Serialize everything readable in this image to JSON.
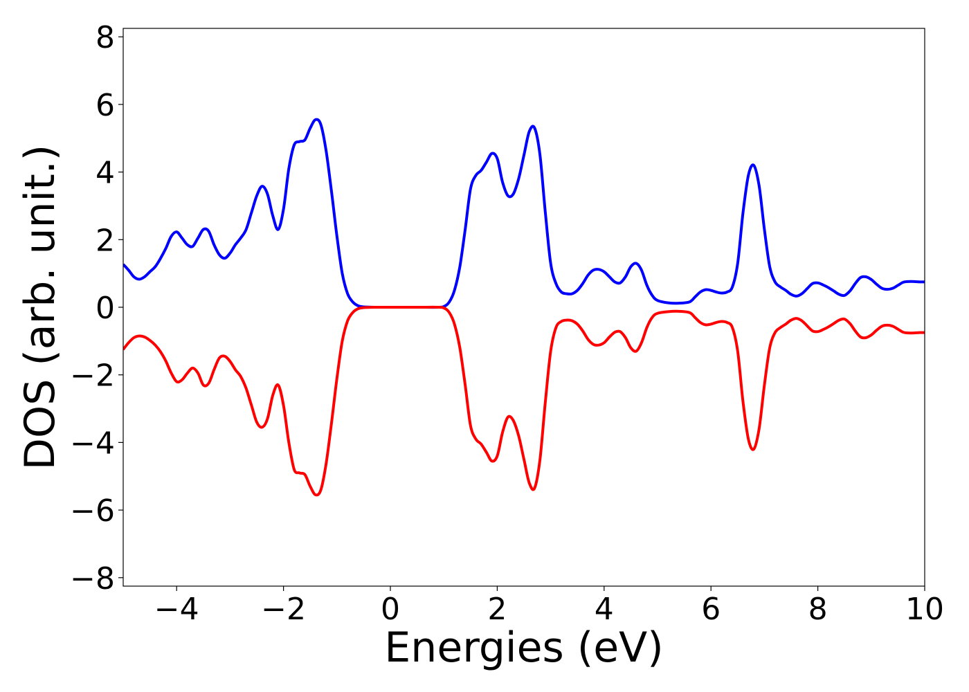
{
  "chart_data": {
    "type": "line",
    "title": "",
    "xlabel": "Energies (eV)",
    "ylabel": "DOS (arb. unit.)",
    "xlim": [
      -5,
      10
    ],
    "ylim": [
      -8.25,
      8.25
    ],
    "xticks": [
      -4,
      -2,
      0,
      2,
      4,
      6,
      8,
      10
    ],
    "xtick_labels": [
      "−4",
      "−2",
      "0",
      "2",
      "4",
      "6",
      "8",
      "10"
    ],
    "yticks": [
      8,
      6,
      4,
      2,
      0,
      -2,
      -4,
      -6,
      -8
    ],
    "ytick_labels": [
      "8",
      "6",
      "4",
      "2",
      "0",
      "−2",
      "−4",
      "−6",
      "−8"
    ],
    "grid": false,
    "legend": "none",
    "series": [
      {
        "color": "#0000ff",
        "points": [
          [
            -5.0,
            1.27
          ],
          [
            -4.9,
            1.1
          ],
          [
            -4.8,
            0.9
          ],
          [
            -4.7,
            0.83
          ],
          [
            -4.6,
            0.9
          ],
          [
            -4.5,
            1.05
          ],
          [
            -4.4,
            1.2
          ],
          [
            -4.3,
            1.45
          ],
          [
            -4.2,
            1.75
          ],
          [
            -4.1,
            2.1
          ],
          [
            -4.0,
            2.23
          ],
          [
            -3.9,
            2.05
          ],
          [
            -3.8,
            1.85
          ],
          [
            -3.7,
            1.8
          ],
          [
            -3.6,
            2.05
          ],
          [
            -3.5,
            2.3
          ],
          [
            -3.4,
            2.25
          ],
          [
            -3.3,
            1.85
          ],
          [
            -3.2,
            1.55
          ],
          [
            -3.1,
            1.45
          ],
          [
            -3.0,
            1.6
          ],
          [
            -2.9,
            1.85
          ],
          [
            -2.8,
            2.05
          ],
          [
            -2.7,
            2.3
          ],
          [
            -2.6,
            2.8
          ],
          [
            -2.5,
            3.3
          ],
          [
            -2.4,
            3.58
          ],
          [
            -2.3,
            3.35
          ],
          [
            -2.2,
            2.7
          ],
          [
            -2.1,
            2.3
          ],
          [
            -2.0,
            2.9
          ],
          [
            -1.9,
            4.1
          ],
          [
            -1.8,
            4.8
          ],
          [
            -1.7,
            4.9
          ],
          [
            -1.6,
            4.95
          ],
          [
            -1.5,
            5.3
          ],
          [
            -1.4,
            5.55
          ],
          [
            -1.3,
            5.4
          ],
          [
            -1.2,
            4.6
          ],
          [
            -1.1,
            3.4
          ],
          [
            -1.0,
            2.1
          ],
          [
            -0.9,
            1.0
          ],
          [
            -0.8,
            0.4
          ],
          [
            -0.7,
            0.15
          ],
          [
            -0.6,
            0.04
          ],
          [
            -0.5,
            0.01
          ],
          [
            -0.3,
            0.0
          ],
          [
            0.0,
            0.0
          ],
          [
            0.5,
            0.0
          ],
          [
            0.9,
            0.0
          ],
          [
            1.0,
            0.02
          ],
          [
            1.1,
            0.15
          ],
          [
            1.2,
            0.5
          ],
          [
            1.3,
            1.2
          ],
          [
            1.4,
            2.3
          ],
          [
            1.5,
            3.5
          ],
          [
            1.6,
            3.9
          ],
          [
            1.7,
            4.05
          ],
          [
            1.8,
            4.3
          ],
          [
            1.9,
            4.55
          ],
          [
            2.0,
            4.4
          ],
          [
            2.1,
            3.7
          ],
          [
            2.2,
            3.3
          ],
          [
            2.3,
            3.35
          ],
          [
            2.4,
            3.8
          ],
          [
            2.5,
            4.5
          ],
          [
            2.6,
            5.2
          ],
          [
            2.7,
            5.3
          ],
          [
            2.8,
            4.5
          ],
          [
            2.9,
            2.8
          ],
          [
            3.0,
            1.3
          ],
          [
            3.1,
            0.7
          ],
          [
            3.2,
            0.45
          ],
          [
            3.3,
            0.4
          ],
          [
            3.4,
            0.4
          ],
          [
            3.5,
            0.5
          ],
          [
            3.6,
            0.7
          ],
          [
            3.7,
            0.95
          ],
          [
            3.8,
            1.1
          ],
          [
            3.9,
            1.12
          ],
          [
            4.0,
            1.05
          ],
          [
            4.1,
            0.9
          ],
          [
            4.2,
            0.75
          ],
          [
            4.3,
            0.72
          ],
          [
            4.4,
            0.9
          ],
          [
            4.5,
            1.2
          ],
          [
            4.6,
            1.3
          ],
          [
            4.7,
            1.1
          ],
          [
            4.8,
            0.65
          ],
          [
            4.9,
            0.35
          ],
          [
            5.0,
            0.2
          ],
          [
            5.2,
            0.13
          ],
          [
            5.4,
            0.12
          ],
          [
            5.6,
            0.16
          ],
          [
            5.7,
            0.3
          ],
          [
            5.8,
            0.45
          ],
          [
            5.9,
            0.52
          ],
          [
            6.0,
            0.5
          ],
          [
            6.1,
            0.45
          ],
          [
            6.2,
            0.42
          ],
          [
            6.3,
            0.45
          ],
          [
            6.4,
            0.6
          ],
          [
            6.5,
            1.3
          ],
          [
            6.6,
            2.8
          ],
          [
            6.7,
            3.9
          ],
          [
            6.8,
            4.2
          ],
          [
            6.9,
            3.6
          ],
          [
            7.0,
            2.3
          ],
          [
            7.1,
            1.2
          ],
          [
            7.2,
            0.75
          ],
          [
            7.3,
            0.6
          ],
          [
            7.4,
            0.5
          ],
          [
            7.5,
            0.38
          ],
          [
            7.6,
            0.33
          ],
          [
            7.7,
            0.4
          ],
          [
            7.8,
            0.55
          ],
          [
            7.9,
            0.7
          ],
          [
            8.0,
            0.72
          ],
          [
            8.1,
            0.66
          ],
          [
            8.2,
            0.58
          ],
          [
            8.3,
            0.48
          ],
          [
            8.4,
            0.38
          ],
          [
            8.5,
            0.35
          ],
          [
            8.6,
            0.48
          ],
          [
            8.7,
            0.7
          ],
          [
            8.8,
            0.88
          ],
          [
            8.9,
            0.9
          ],
          [
            9.0,
            0.82
          ],
          [
            9.1,
            0.68
          ],
          [
            9.2,
            0.56
          ],
          [
            9.3,
            0.53
          ],
          [
            9.4,
            0.56
          ],
          [
            9.5,
            0.65
          ],
          [
            9.6,
            0.74
          ],
          [
            9.7,
            0.76
          ],
          [
            9.8,
            0.76
          ],
          [
            9.9,
            0.75
          ],
          [
            10.0,
            0.75
          ]
        ]
      },
      {
        "color": "#ff0000",
        "points": [
          [
            -5.0,
            -1.25
          ],
          [
            -4.9,
            -1.05
          ],
          [
            -4.8,
            -0.9
          ],
          [
            -4.7,
            -0.85
          ],
          [
            -4.6,
            -0.88
          ],
          [
            -4.5,
            -0.98
          ],
          [
            -4.4,
            -1.12
          ],
          [
            -4.3,
            -1.32
          ],
          [
            -4.2,
            -1.6
          ],
          [
            -4.1,
            -1.95
          ],
          [
            -4.0,
            -2.2
          ],
          [
            -3.9,
            -2.15
          ],
          [
            -3.8,
            -1.95
          ],
          [
            -3.7,
            -1.8
          ],
          [
            -3.6,
            -1.95
          ],
          [
            -3.5,
            -2.3
          ],
          [
            -3.4,
            -2.25
          ],
          [
            -3.3,
            -1.85
          ],
          [
            -3.2,
            -1.5
          ],
          [
            -3.1,
            -1.45
          ],
          [
            -3.0,
            -1.6
          ],
          [
            -2.9,
            -1.85
          ],
          [
            -2.8,
            -2.05
          ],
          [
            -2.7,
            -2.4
          ],
          [
            -2.6,
            -2.9
          ],
          [
            -2.5,
            -3.4
          ],
          [
            -2.4,
            -3.55
          ],
          [
            -2.3,
            -3.3
          ],
          [
            -2.2,
            -2.6
          ],
          [
            -2.1,
            -2.3
          ],
          [
            -2.0,
            -2.9
          ],
          [
            -1.9,
            -4.0
          ],
          [
            -1.8,
            -4.8
          ],
          [
            -1.7,
            -4.9
          ],
          [
            -1.6,
            -4.95
          ],
          [
            -1.5,
            -5.3
          ],
          [
            -1.4,
            -5.55
          ],
          [
            -1.3,
            -5.4
          ],
          [
            -1.2,
            -4.6
          ],
          [
            -1.1,
            -3.4
          ],
          [
            -1.0,
            -2.1
          ],
          [
            -0.9,
            -1.0
          ],
          [
            -0.8,
            -0.4
          ],
          [
            -0.7,
            -0.15
          ],
          [
            -0.6,
            -0.04
          ],
          [
            -0.5,
            -0.01
          ],
          [
            -0.3,
            0.0
          ],
          [
            0.0,
            0.0
          ],
          [
            0.5,
            0.0
          ],
          [
            0.9,
            0.0
          ],
          [
            1.0,
            -0.02
          ],
          [
            1.1,
            -0.15
          ],
          [
            1.2,
            -0.5
          ],
          [
            1.3,
            -1.2
          ],
          [
            1.4,
            -2.3
          ],
          [
            1.5,
            -3.5
          ],
          [
            1.6,
            -3.9
          ],
          [
            1.7,
            -4.05
          ],
          [
            1.8,
            -4.3
          ],
          [
            1.9,
            -4.55
          ],
          [
            2.0,
            -4.4
          ],
          [
            2.1,
            -3.7
          ],
          [
            2.2,
            -3.25
          ],
          [
            2.3,
            -3.35
          ],
          [
            2.4,
            -3.8
          ],
          [
            2.5,
            -4.5
          ],
          [
            2.6,
            -5.2
          ],
          [
            2.7,
            -5.35
          ],
          [
            2.8,
            -4.5
          ],
          [
            2.9,
            -2.8
          ],
          [
            3.0,
            -1.3
          ],
          [
            3.1,
            -0.6
          ],
          [
            3.2,
            -0.42
          ],
          [
            3.3,
            -0.38
          ],
          [
            3.4,
            -0.4
          ],
          [
            3.5,
            -0.5
          ],
          [
            3.6,
            -0.7
          ],
          [
            3.7,
            -0.95
          ],
          [
            3.8,
            -1.1
          ],
          [
            3.9,
            -1.12
          ],
          [
            4.0,
            -1.05
          ],
          [
            4.1,
            -0.88
          ],
          [
            4.2,
            -0.74
          ],
          [
            4.3,
            -0.72
          ],
          [
            4.4,
            -0.9
          ],
          [
            4.5,
            -1.2
          ],
          [
            4.6,
            -1.3
          ],
          [
            4.7,
            -1.05
          ],
          [
            4.8,
            -0.6
          ],
          [
            4.9,
            -0.3
          ],
          [
            5.0,
            -0.18
          ],
          [
            5.2,
            -0.13
          ],
          [
            5.4,
            -0.12
          ],
          [
            5.6,
            -0.16
          ],
          [
            5.7,
            -0.3
          ],
          [
            5.8,
            -0.45
          ],
          [
            5.9,
            -0.52
          ],
          [
            6.0,
            -0.5
          ],
          [
            6.1,
            -0.45
          ],
          [
            6.2,
            -0.42
          ],
          [
            6.3,
            -0.45
          ],
          [
            6.4,
            -0.6
          ],
          [
            6.5,
            -1.3
          ],
          [
            6.6,
            -2.8
          ],
          [
            6.7,
            -3.9
          ],
          [
            6.8,
            -4.2
          ],
          [
            6.9,
            -3.6
          ],
          [
            7.0,
            -2.3
          ],
          [
            7.1,
            -1.2
          ],
          [
            7.2,
            -0.75
          ],
          [
            7.3,
            -0.6
          ],
          [
            7.4,
            -0.5
          ],
          [
            7.5,
            -0.38
          ],
          [
            7.6,
            -0.33
          ],
          [
            7.7,
            -0.4
          ],
          [
            7.8,
            -0.55
          ],
          [
            7.9,
            -0.7
          ],
          [
            8.0,
            -0.72
          ],
          [
            8.1,
            -0.66
          ],
          [
            8.2,
            -0.58
          ],
          [
            8.3,
            -0.48
          ],
          [
            8.4,
            -0.38
          ],
          [
            8.5,
            -0.35
          ],
          [
            8.6,
            -0.48
          ],
          [
            8.7,
            -0.7
          ],
          [
            8.8,
            -0.88
          ],
          [
            8.9,
            -0.9
          ],
          [
            9.0,
            -0.82
          ],
          [
            9.1,
            -0.68
          ],
          [
            9.2,
            -0.56
          ],
          [
            9.3,
            -0.53
          ],
          [
            9.4,
            -0.56
          ],
          [
            9.5,
            -0.65
          ],
          [
            9.6,
            -0.74
          ],
          [
            9.7,
            -0.76
          ],
          [
            9.8,
            -0.76
          ],
          [
            9.9,
            -0.75
          ],
          [
            10.0,
            -0.75
          ]
        ]
      }
    ]
  }
}
